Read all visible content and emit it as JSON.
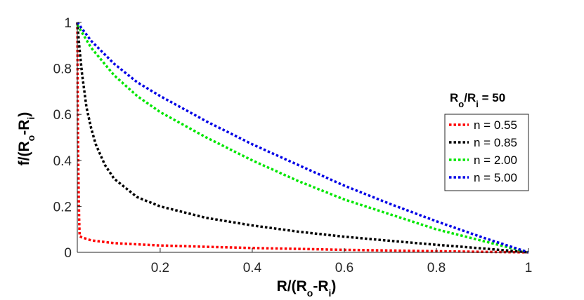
{
  "chart_data": {
    "type": "line",
    "xlabel": {
      "main": "R/(R",
      "sub1": "o",
      "mid": "-R",
      "sub2": "i",
      "end": ")"
    },
    "ylabel": {
      "main": "f/(R",
      "sub1": "o",
      "mid": "-R",
      "sub2": "i",
      "end": ")"
    },
    "xlim": [
      0.02,
      1
    ],
    "ylim": [
      0,
      1
    ],
    "xticks": [
      0.2,
      0.4,
      0.6,
      0.8,
      1
    ],
    "xtick_labels": [
      "0.2",
      "0.4",
      "0.6",
      "0.8",
      "1"
    ],
    "yticks": [
      0,
      0.2,
      0.4,
      0.6,
      0.8,
      1
    ],
    "ytick_labels": [
      "0",
      "0.2",
      "0.4",
      "0.6",
      "0.8",
      "1"
    ],
    "grid": false,
    "legend_position": "right",
    "legend_title": {
      "main": "R",
      "sub1": "o",
      "mid": "/R",
      "sub2": "i",
      "end": " = 50"
    },
    "series": [
      {
        "name": "n = 0.55",
        "color": "#ff0000",
        "x": [
          0.02,
          0.021,
          0.022,
          0.023,
          0.024,
          0.025,
          0.03,
          0.05,
          0.1,
          0.2,
          0.3,
          0.4,
          0.5,
          0.6,
          0.7,
          0.8,
          0.9,
          1.0
        ],
        "y": [
          1.0,
          0.6,
          0.4,
          0.25,
          0.15,
          0.07,
          0.065,
          0.052,
          0.04,
          0.03,
          0.024,
          0.019,
          0.015,
          0.011,
          0.008,
          0.005,
          0.002,
          0.0
        ]
      },
      {
        "name": "n = 0.85",
        "color": "#000000",
        "x": [
          0.02,
          0.025,
          0.03,
          0.04,
          0.05,
          0.06,
          0.08,
          0.1,
          0.15,
          0.2,
          0.3,
          0.4,
          0.5,
          0.6,
          0.7,
          0.8,
          0.9,
          1.0
        ],
        "y": [
          1.0,
          0.88,
          0.78,
          0.63,
          0.54,
          0.47,
          0.38,
          0.32,
          0.24,
          0.2,
          0.15,
          0.117,
          0.09,
          0.068,
          0.05,
          0.033,
          0.017,
          0.0
        ]
      },
      {
        "name": "n = 2.00",
        "color": "#00e600",
        "x": [
          0.02,
          0.05,
          0.1,
          0.15,
          0.2,
          0.3,
          0.4,
          0.5,
          0.6,
          0.7,
          0.8,
          0.9,
          1.0
        ],
        "y": [
          0.99,
          0.89,
          0.77,
          0.68,
          0.61,
          0.5,
          0.4,
          0.31,
          0.23,
          0.165,
          0.1,
          0.05,
          0.0
        ]
      },
      {
        "name": "n = 5.00",
        "color": "#0000e6",
        "x": [
          0.02,
          0.05,
          0.1,
          0.15,
          0.2,
          0.3,
          0.4,
          0.5,
          0.6,
          0.7,
          0.8,
          0.9,
          1.0
        ],
        "y": [
          1.0,
          0.92,
          0.82,
          0.74,
          0.68,
          0.57,
          0.47,
          0.38,
          0.29,
          0.21,
          0.135,
          0.065,
          0.0
        ]
      }
    ]
  }
}
